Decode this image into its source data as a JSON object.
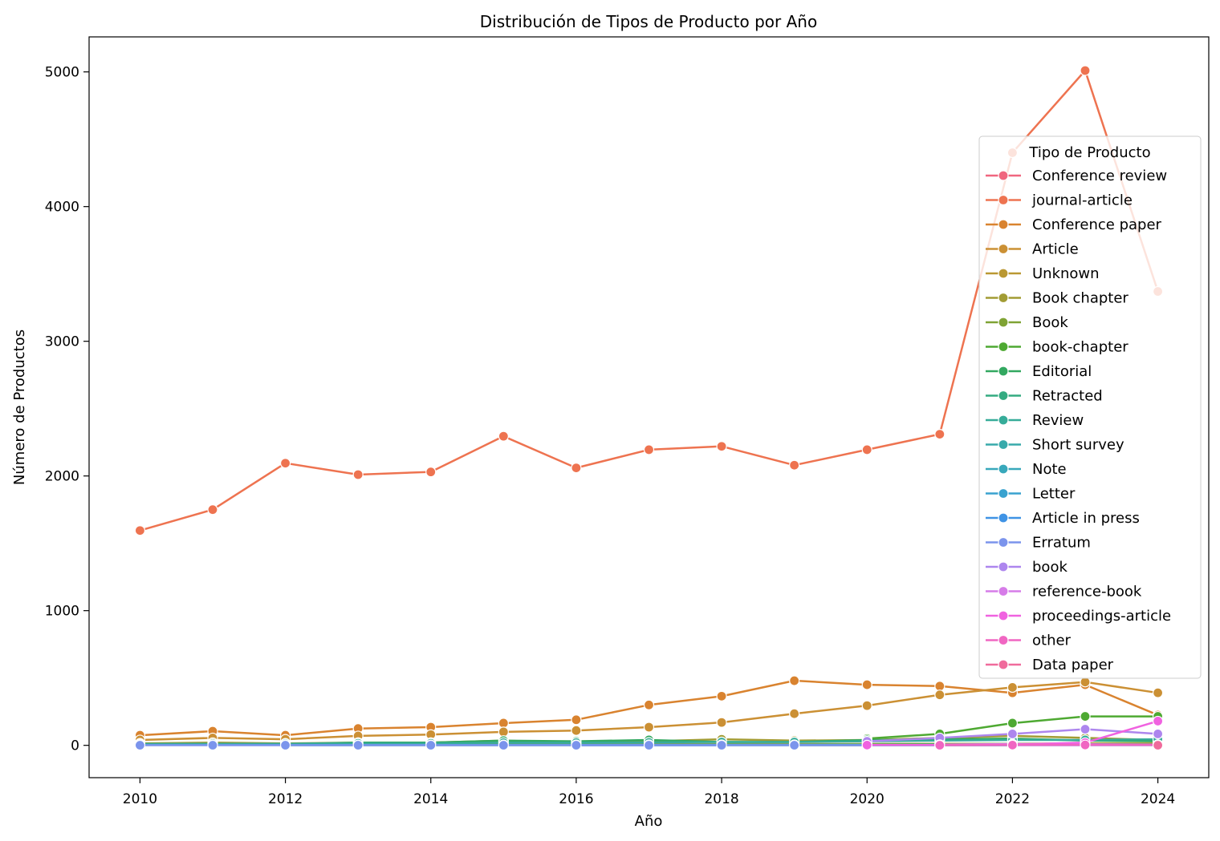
{
  "chart_data": {
    "type": "line",
    "title": "Distribución de Tipos de Producto por Año",
    "xlabel": "Año",
    "ylabel": "Número de Productos",
    "xlim": [
      2009.3,
      2024.7
    ],
    "ylim": [
      -240,
      5260
    ],
    "x_ticks": [
      2010,
      2012,
      2014,
      2016,
      2018,
      2020,
      2022,
      2024
    ],
    "y_ticks": [
      0,
      1000,
      2000,
      3000,
      4000,
      5000
    ],
    "grid": false,
    "legend_title": "Tipo de Producto",
    "legend_position": "right",
    "series": [
      {
        "name": "Conference review",
        "color": "#f0667f",
        "x": [
          2010,
          2011,
          2012,
          2013,
          2014,
          2015,
          2016,
          2017,
          2018,
          2019,
          2020
        ],
        "values": [
          3,
          2,
          2,
          3,
          2,
          3,
          2,
          2,
          2,
          2,
          1
        ]
      },
      {
        "name": "journal-article",
        "color": "#ee7350",
        "x": [
          2010,
          2011,
          2012,
          2013,
          2014,
          2015,
          2016,
          2017,
          2018,
          2019,
          2020,
          2021,
          2022,
          2023,
          2024
        ],
        "values": [
          1595,
          1750,
          2095,
          2010,
          2030,
          2295,
          2060,
          2195,
          2220,
          2080,
          2195,
          2310,
          4400,
          5010,
          3370
        ]
      },
      {
        "name": "Conference paper",
        "color": "#d9832f",
        "x": [
          2010,
          2011,
          2012,
          2013,
          2014,
          2015,
          2016,
          2017,
          2018,
          2019,
          2020,
          2021,
          2022,
          2023,
          2024
        ],
        "values": [
          75,
          105,
          75,
          125,
          135,
          165,
          190,
          300,
          365,
          480,
          450,
          440,
          390,
          450,
          225
        ]
      },
      {
        "name": "Article",
        "color": "#cb9034",
        "x": [
          2010,
          2011,
          2012,
          2013,
          2014,
          2015,
          2016,
          2017,
          2018,
          2019,
          2020,
          2021,
          2022,
          2023,
          2024
        ],
        "values": [
          40,
          55,
          45,
          70,
          80,
          100,
          110,
          135,
          170,
          235,
          295,
          375,
          430,
          470,
          390
        ]
      },
      {
        "name": "Unknown",
        "color": "#ba9832",
        "x": [
          2010,
          2011,
          2012,
          2013,
          2014,
          2015,
          2016,
          2017,
          2018,
          2019,
          2020,
          2021,
          2022,
          2023,
          2024
        ],
        "values": [
          5,
          5,
          5,
          6,
          6,
          8,
          8,
          8,
          10,
          10,
          10,
          12,
          12,
          14,
          15
        ]
      },
      {
        "name": "Book chapter",
        "color": "#a29c34",
        "x": [
          2010,
          2011,
          2012,
          2013,
          2014,
          2015,
          2016,
          2017,
          2018,
          2019,
          2020,
          2021,
          2022,
          2023,
          2024
        ],
        "values": [
          15,
          20,
          15,
          20,
          20,
          35,
          20,
          30,
          45,
          35,
          40,
          55,
          70,
          55,
          40
        ]
      },
      {
        "name": "Book",
        "color": "#7fa334",
        "x": [
          2010,
          2011,
          2012,
          2013,
          2014,
          2015,
          2016,
          2017,
          2018,
          2019,
          2020,
          2021,
          2022,
          2023,
          2024
        ],
        "values": [
          5,
          5,
          5,
          5,
          5,
          8,
          5,
          6,
          8,
          6,
          10,
          10,
          12,
          10,
          10
        ]
      },
      {
        "name": "book-chapter",
        "color": "#4ea932",
        "x": [
          2020,
          2021,
          2022,
          2023,
          2024
        ],
        "values": [
          50,
          85,
          165,
          215,
          215
        ]
      },
      {
        "name": "Editorial",
        "color": "#32a860",
        "x": [
          2010,
          2011,
          2012,
          2013,
          2014,
          2015,
          2016,
          2017,
          2018,
          2019,
          2020,
          2021,
          2022,
          2023,
          2024
        ],
        "values": [
          10,
          10,
          10,
          20,
          20,
          35,
          30,
          40,
          25,
          25,
          40,
          45,
          50,
          35,
          30
        ]
      },
      {
        "name": "Retracted",
        "color": "#34ab81",
        "x": [
          2012,
          2014,
          2016,
          2018,
          2020,
          2022
        ],
        "values": [
          1,
          1,
          1,
          1,
          1,
          1
        ]
      },
      {
        "name": "Review",
        "color": "#36ac99",
        "x": [
          2010,
          2011,
          2012,
          2013,
          2014,
          2015,
          2016,
          2017,
          2018,
          2019,
          2020,
          2021,
          2022,
          2023,
          2024
        ],
        "values": [
          10,
          12,
          12,
          15,
          15,
          20,
          20,
          22,
          25,
          25,
          30,
          35,
          40,
          40,
          45
        ]
      },
      {
        "name": "Short survey",
        "color": "#38aaab",
        "x": [
          2010,
          2011,
          2012,
          2013,
          2014,
          2015,
          2016,
          2017,
          2018,
          2019,
          2020,
          2021,
          2022,
          2023,
          2024
        ],
        "values": [
          2,
          2,
          2,
          3,
          3,
          3,
          3,
          4,
          4,
          4,
          4,
          5,
          5,
          5,
          5
        ]
      },
      {
        "name": "Note",
        "color": "#38a8bb",
        "x": [
          2010,
          2011,
          2012,
          2013,
          2014,
          2015,
          2016,
          2017,
          2018,
          2019,
          2020,
          2021,
          2022,
          2023,
          2024
        ],
        "values": [
          3,
          3,
          3,
          3,
          3,
          4,
          4,
          4,
          4,
          4,
          3,
          3,
          3,
          3,
          3
        ]
      },
      {
        "name": "Letter",
        "color": "#39a2cf",
        "x": [
          2010,
          2011,
          2012,
          2013,
          2014,
          2015,
          2016,
          2017,
          2018,
          2019,
          2020,
          2021,
          2022,
          2023,
          2024
        ],
        "values": [
          2,
          2,
          2,
          2,
          2,
          2,
          2,
          2,
          2,
          2,
          2,
          2,
          2,
          2,
          2
        ]
      },
      {
        "name": "Article in press",
        "color": "#3f93e5",
        "x": [
          2016,
          2018
        ],
        "values": [
          1,
          1
        ]
      },
      {
        "name": "Erratum",
        "color": "#7b94ec",
        "x": [
          2010,
          2011,
          2012,
          2013,
          2014,
          2015,
          2016,
          2017,
          2018,
          2019,
          2020,
          2021,
          2022,
          2023,
          2024
        ],
        "values": [
          1,
          1,
          1,
          1,
          1,
          1,
          1,
          1,
          1,
          1,
          1,
          1,
          1,
          1,
          1
        ]
      },
      {
        "name": "book",
        "color": "#ad86ee",
        "x": [
          2020,
          2021,
          2022,
          2023,
          2024
        ],
        "values": [
          30,
          55,
          85,
          120,
          85
        ]
      },
      {
        "name": "reference-book",
        "color": "#d67ce8",
        "x": [
          2021,
          2022,
          2023,
          2024
        ],
        "values": [
          5,
          10,
          8,
          5
        ]
      },
      {
        "name": "proceedings-article",
        "color": "#f062e0",
        "x": [
          2020,
          2021,
          2022,
          2023,
          2024
        ],
        "values": [
          2,
          3,
          5,
          20,
          180
        ]
      },
      {
        "name": "other",
        "color": "#f066c2",
        "x": [
          2021,
          2022,
          2023,
          2024
        ],
        "values": [
          1,
          2,
          3,
          3
        ]
      },
      {
        "name": "Data paper",
        "color": "#f06b9c",
        "x": [
          2024
        ],
        "values": [
          1
        ]
      }
    ]
  }
}
